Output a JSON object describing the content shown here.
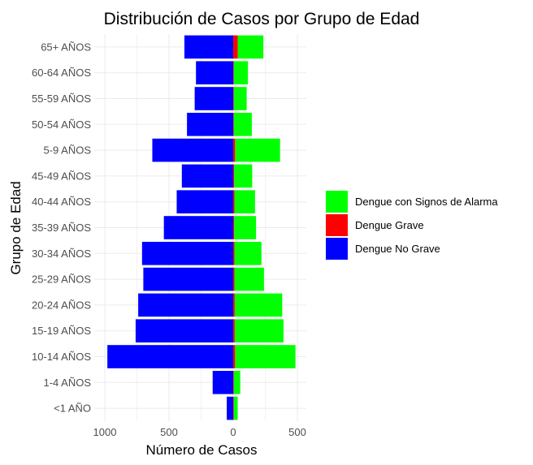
{
  "chart_data": {
    "type": "bar",
    "orientation": "horizontal-diverging",
    "title": "Distribución de Casos por Grupo de Edad",
    "xlabel": "Número de Casos",
    "ylabel": "Grupo de Edad",
    "xlim": [
      -1000,
      550
    ],
    "x_ticks": [
      -1000,
      -500,
      0,
      500
    ],
    "x_tick_labels": [
      "1000",
      "500",
      "0",
      "500"
    ],
    "grid": true,
    "legend_position": "right",
    "categories": [
      "<1 AÑO",
      "1-4 AÑOS",
      "10-14 AÑOS",
      "15-19 AÑOS",
      "20-24 AÑOS",
      "25-29 AÑOS",
      "30-34 AÑOS",
      "35-39 AÑOS",
      "40-44 AÑOS",
      "45-49 AÑOS",
      "5-9 AÑOS",
      "50-54 AÑOS",
      "55-59 AÑOS",
      "60-64 AÑOS",
      "65+ AÑOS"
    ],
    "series": [
      {
        "name": "Dengue con Signos de Alarma",
        "color": "#00ff00",
        "values": [
          30,
          50,
          470,
          380,
          370,
          230,
          210,
          170,
          160,
          140,
          350,
          140,
          100,
          110,
          200
        ]
      },
      {
        "name": "Dengue Grave",
        "color": "#ff0000",
        "values": [
          5,
          5,
          15,
          12,
          12,
          10,
          10,
          8,
          10,
          8,
          15,
          5,
          5,
          5,
          35
        ]
      },
      {
        "name": "Dengue No Grave",
        "color": "#0000ff",
        "values": [
          50,
          160,
          980,
          760,
          740,
          700,
          710,
          540,
          440,
          400,
          630,
          360,
          300,
          290,
          380
        ]
      }
    ]
  }
}
